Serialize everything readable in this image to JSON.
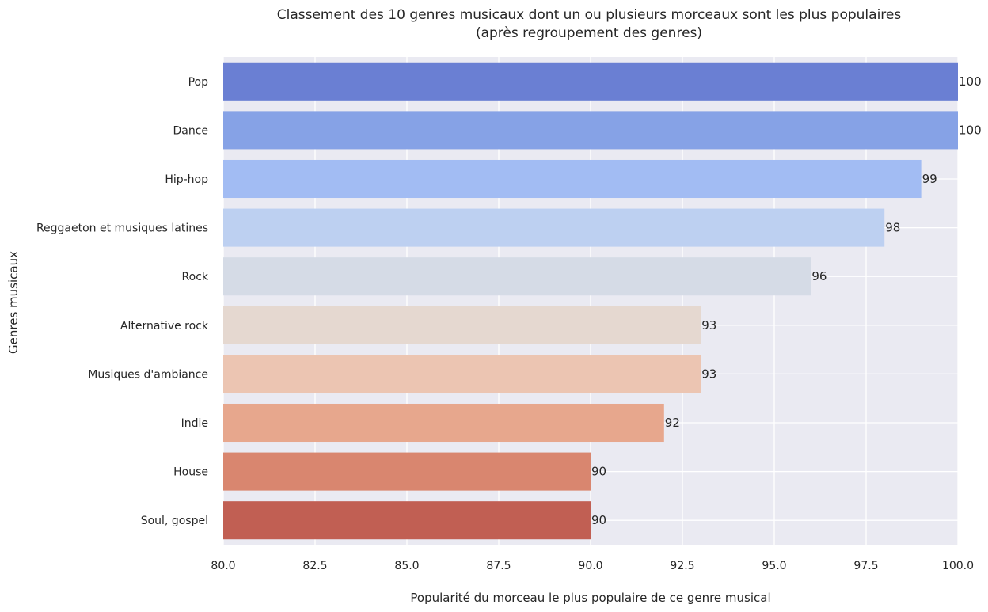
{
  "chart_data": {
    "type": "bar",
    "orientation": "horizontal",
    "title": [
      "Classement des 10 genres musicaux dont un ou plusieurs morceaux sont les plus populaires",
      "(après regroupement des genres)"
    ],
    "xlabel": "Popularité du morceau le plus populaire de ce genre musical",
    "ylabel": "Genres musicaux",
    "xlim": [
      80,
      100
    ],
    "xticks": [
      "80.0",
      "82.5",
      "85.0",
      "87.5",
      "90.0",
      "92.5",
      "95.0",
      "97.5",
      "100.0"
    ],
    "grid": true,
    "categories": [
      "Pop",
      "Dance",
      "Hip-hop",
      "Reggaeton et musiques latines",
      "Rock",
      "Alternative rock",
      "Musiques d'ambiance",
      "Indie",
      "House",
      "Soul, gospel"
    ],
    "values": [
      100,
      100,
      99,
      98,
      96,
      93,
      93,
      92,
      90,
      90
    ],
    "data_labels": [
      "100",
      "100",
      "99",
      "98",
      "96",
      "93",
      "93",
      "92",
      "90",
      "90"
    ],
    "colors": [
      "#6a7fd3",
      "#86a2e6",
      "#a2bcf3",
      "#bdd0f1",
      "#d5dbe6",
      "#e5d8d0",
      "#ecc5b2",
      "#e7a78d",
      "#d9866f",
      "#c15f53"
    ],
    "plot_background": "#eaeaf2"
  }
}
